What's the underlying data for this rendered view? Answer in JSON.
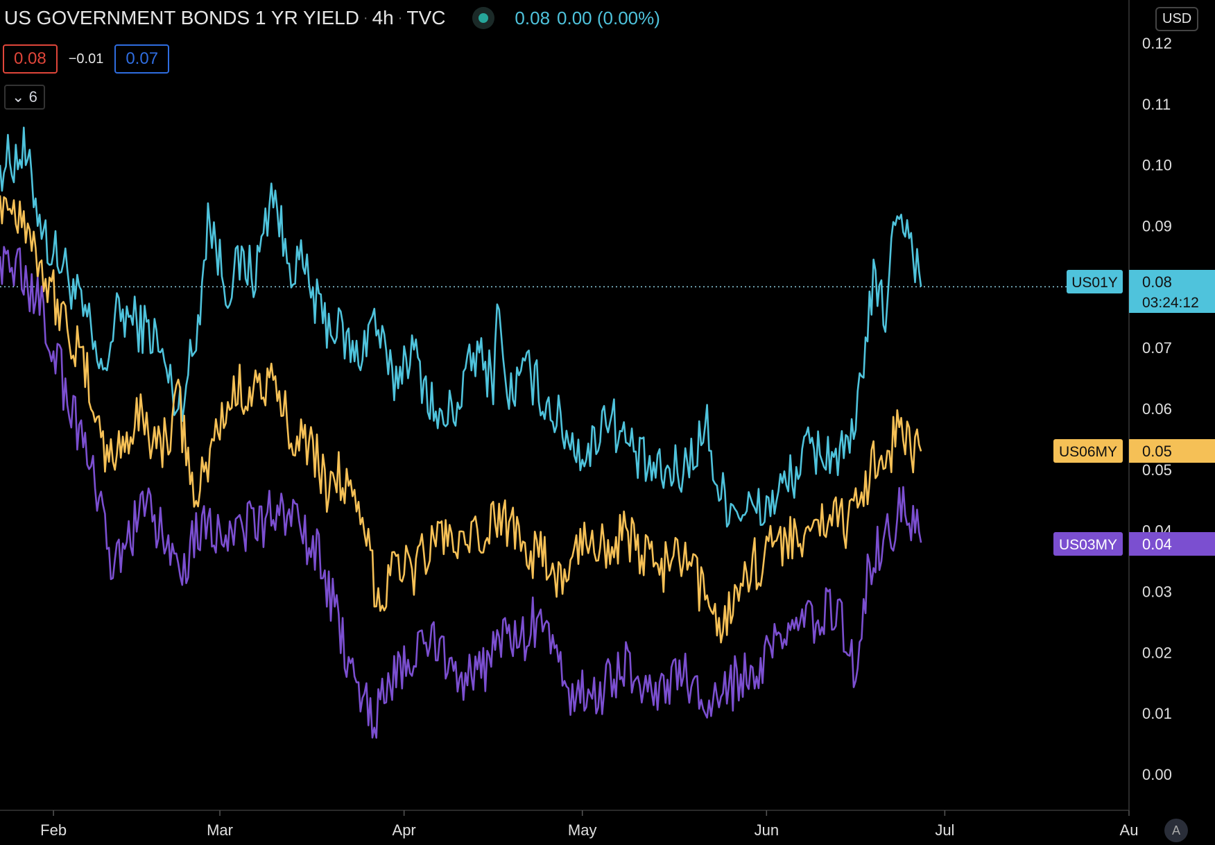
{
  "header": {
    "title": "US GOVERNMENT BONDS 1 YR YIELD",
    "interval": "4h",
    "source": "TVC",
    "last": "0.08",
    "change": "0.00 (0.00%)",
    "ohlc_left": "0.08",
    "ohlc_mid": "−0.01",
    "ohlc_right": "0.07",
    "collapse_label": "6"
  },
  "currency_label": "USD",
  "auto_label": "A",
  "countdown": "03:24:12",
  "chart_data": {
    "type": "line",
    "title": "US GOVERNMENT BONDS 1 YR YIELD",
    "interval": "4h",
    "x_ticks": [
      "Feb",
      "Mar",
      "Apr",
      "May",
      "Jun",
      "Jul",
      "Au"
    ],
    "y_ticks": [
      "0.12",
      "0.11",
      "0.10",
      "0.09",
      "0.08",
      "0.07",
      "0.06",
      "0.05",
      "0.04",
      "0.03",
      "0.02",
      "0.01",
      "0.00"
    ],
    "y_tick_values": [
      0.12,
      0.11,
      0.1,
      0.09,
      0.08,
      0.07,
      0.06,
      0.05,
      0.04,
      0.03,
      0.02,
      0.01,
      0.0
    ],
    "ylim": [
      0.0,
      0.12
    ],
    "x_range": [
      "2021-01-23",
      "2021-08-01"
    ],
    "current_price_line": 0.08,
    "series": [
      {
        "name": "US01Y",
        "color": "#4fc3dc",
        "label": "US01Y",
        "last_label": "0.08",
        "points": [
          [
            "2021-01-23",
            0.1
          ],
          [
            "2021-01-27",
            0.102
          ],
          [
            "2021-01-31",
            0.087
          ],
          [
            "2021-02-03",
            0.083
          ],
          [
            "2021-02-07",
            0.073
          ],
          [
            "2021-02-09",
            0.065
          ],
          [
            "2021-02-12",
            0.076
          ],
          [
            "2021-02-15",
            0.074
          ],
          [
            "2021-02-18",
            0.072
          ],
          [
            "2021-02-22",
            0.06
          ],
          [
            "2021-02-25",
            0.071
          ],
          [
            "2021-02-27",
            0.092
          ],
          [
            "2021-03-02",
            0.08
          ],
          [
            "2021-03-05",
            0.084
          ],
          [
            "2021-03-07",
            0.082
          ],
          [
            "2021-03-10",
            0.097
          ],
          [
            "2021-03-12",
            0.085
          ],
          [
            "2021-03-15",
            0.083
          ],
          [
            "2021-03-18",
            0.075
          ],
          [
            "2021-03-21",
            0.073
          ],
          [
            "2021-03-24",
            0.068
          ],
          [
            "2021-03-27",
            0.075
          ],
          [
            "2021-03-30",
            0.064
          ],
          [
            "2021-04-02",
            0.07
          ],
          [
            "2021-04-05",
            0.063
          ],
          [
            "2021-04-07",
            0.057
          ],
          [
            "2021-04-10",
            0.061
          ],
          [
            "2021-04-13",
            0.069
          ],
          [
            "2021-04-16",
            0.065
          ],
          [
            "2021-04-17",
            0.08
          ],
          [
            "2021-04-18",
            0.062
          ],
          [
            "2021-04-22",
            0.066
          ],
          [
            "2021-04-25",
            0.061
          ],
          [
            "2021-04-29",
            0.055
          ],
          [
            "2021-05-02",
            0.052
          ],
          [
            "2021-05-05",
            0.06
          ],
          [
            "2021-05-08",
            0.055
          ],
          [
            "2021-05-11",
            0.051
          ],
          [
            "2021-05-14",
            0.049
          ],
          [
            "2021-05-18",
            0.05
          ],
          [
            "2021-05-22",
            0.057
          ],
          [
            "2021-05-24",
            0.046
          ],
          [
            "2021-05-27",
            0.044
          ],
          [
            "2021-05-31",
            0.043
          ],
          [
            "2021-06-04",
            0.047
          ],
          [
            "2021-06-08",
            0.053
          ],
          [
            "2021-06-11",
            0.053
          ],
          [
            "2021-06-14",
            0.052
          ],
          [
            "2021-06-16",
            0.055
          ],
          [
            "2021-06-17",
            0.067
          ],
          [
            "2021-06-19",
            0.08
          ],
          [
            "2021-06-21",
            0.076
          ],
          [
            "2021-06-23",
            0.094
          ],
          [
            "2021-06-25",
            0.089
          ],
          [
            "2021-06-26",
            0.085
          ],
          [
            "2021-06-27",
            0.08
          ]
        ]
      },
      {
        "name": "US06MY",
        "color": "#f5c056",
        "label": "US06MY",
        "last_label": "0.05",
        "points": [
          [
            "2021-01-23",
            0.095
          ],
          [
            "2021-01-27",
            0.092
          ],
          [
            "2021-01-31",
            0.081
          ],
          [
            "2021-02-04",
            0.072
          ],
          [
            "2021-02-08",
            0.061
          ],
          [
            "2021-02-10",
            0.051
          ],
          [
            "2021-02-13",
            0.055
          ],
          [
            "2021-02-16",
            0.059
          ],
          [
            "2021-02-19",
            0.053
          ],
          [
            "2021-02-22",
            0.061
          ],
          [
            "2021-02-25",
            0.044
          ],
          [
            "2021-02-28",
            0.055
          ],
          [
            "2021-03-03",
            0.062
          ],
          [
            "2021-03-06",
            0.064
          ],
          [
            "2021-03-10",
            0.063
          ],
          [
            "2021-03-13",
            0.057
          ],
          [
            "2021-03-16",
            0.055
          ],
          [
            "2021-03-19",
            0.047
          ],
          [
            "2021-03-21",
            0.05
          ],
          [
            "2021-03-24",
            0.042
          ],
          [
            "2021-03-26",
            0.037
          ],
          [
            "2021-03-28",
            0.027
          ],
          [
            "2021-03-30",
            0.037
          ],
          [
            "2021-04-02",
            0.033
          ],
          [
            "2021-04-05",
            0.037
          ],
          [
            "2021-04-08",
            0.04
          ],
          [
            "2021-04-11",
            0.036
          ],
          [
            "2021-04-14",
            0.039
          ],
          [
            "2021-04-17",
            0.042
          ],
          [
            "2021-04-20",
            0.041
          ],
          [
            "2021-04-23",
            0.036
          ],
          [
            "2021-04-26",
            0.034
          ],
          [
            "2021-04-28",
            0.031
          ],
          [
            "2021-05-01",
            0.039
          ],
          [
            "2021-05-04",
            0.038
          ],
          [
            "2021-05-08",
            0.039
          ],
          [
            "2021-05-11",
            0.036
          ],
          [
            "2021-05-14",
            0.034
          ],
          [
            "2021-05-18",
            0.035
          ],
          [
            "2021-05-21",
            0.03
          ],
          [
            "2021-05-25",
            0.025
          ],
          [
            "2021-05-28",
            0.033
          ],
          [
            "2021-06-01",
            0.036
          ],
          [
            "2021-06-05",
            0.04
          ],
          [
            "2021-06-08",
            0.037
          ],
          [
            "2021-06-11",
            0.043
          ],
          [
            "2021-06-15",
            0.041
          ],
          [
            "2021-06-17",
            0.044
          ],
          [
            "2021-06-19",
            0.053
          ],
          [
            "2021-06-21",
            0.051
          ],
          [
            "2021-06-23",
            0.057
          ],
          [
            "2021-06-25",
            0.054
          ],
          [
            "2021-06-27",
            0.053
          ]
        ]
      },
      {
        "name": "US03MY",
        "color": "#7b4fd0",
        "label": "US03MY",
        "last_label": "0.04",
        "points": [
          [
            "2021-01-23",
            0.085
          ],
          [
            "2021-01-27",
            0.082
          ],
          [
            "2021-01-31",
            0.074
          ],
          [
            "2021-02-03",
            0.063
          ],
          [
            "2021-02-06",
            0.055
          ],
          [
            "2021-02-09",
            0.042
          ],
          [
            "2021-02-11",
            0.033
          ],
          [
            "2021-02-14",
            0.04
          ],
          [
            "2021-02-17",
            0.043
          ],
          [
            "2021-02-20",
            0.038
          ],
          [
            "2021-02-23",
            0.035
          ],
          [
            "2021-02-26",
            0.042
          ],
          [
            "2021-03-01",
            0.04
          ],
          [
            "2021-03-04",
            0.041
          ],
          [
            "2021-03-08",
            0.04
          ],
          [
            "2021-03-11",
            0.045
          ],
          [
            "2021-03-14",
            0.04
          ],
          [
            "2021-03-17",
            0.037
          ],
          [
            "2021-03-20",
            0.028
          ],
          [
            "2021-03-22",
            0.02
          ],
          [
            "2021-03-25",
            0.014
          ],
          [
            "2021-03-27",
            0.009
          ],
          [
            "2021-03-30",
            0.016
          ],
          [
            "2021-04-02",
            0.018
          ],
          [
            "2021-04-05",
            0.022
          ],
          [
            "2021-04-08",
            0.02
          ],
          [
            "2021-04-11",
            0.016
          ],
          [
            "2021-04-14",
            0.016
          ],
          [
            "2021-04-17",
            0.023
          ],
          [
            "2021-04-20",
            0.021
          ],
          [
            "2021-04-23",
            0.025
          ],
          [
            "2021-04-26",
            0.02
          ],
          [
            "2021-04-29",
            0.014
          ],
          [
            "2021-05-02",
            0.012
          ],
          [
            "2021-05-05",
            0.015
          ],
          [
            "2021-05-08",
            0.018
          ],
          [
            "2021-05-11",
            0.016
          ],
          [
            "2021-05-14",
            0.013
          ],
          [
            "2021-05-18",
            0.016
          ],
          [
            "2021-05-21",
            0.012
          ],
          [
            "2021-05-24",
            0.011
          ],
          [
            "2021-05-27",
            0.016
          ],
          [
            "2021-05-30",
            0.015
          ],
          [
            "2021-06-02",
            0.02
          ],
          [
            "2021-06-06",
            0.024
          ],
          [
            "2021-06-10",
            0.026
          ],
          [
            "2021-06-13",
            0.028
          ],
          [
            "2021-06-15",
            0.02
          ],
          [
            "2021-06-16",
            0.017
          ],
          [
            "2021-06-18",
            0.033
          ],
          [
            "2021-06-20",
            0.037
          ],
          [
            "2021-06-22",
            0.04
          ],
          [
            "2021-06-24",
            0.046
          ],
          [
            "2021-06-27",
            0.038
          ]
        ]
      }
    ]
  }
}
